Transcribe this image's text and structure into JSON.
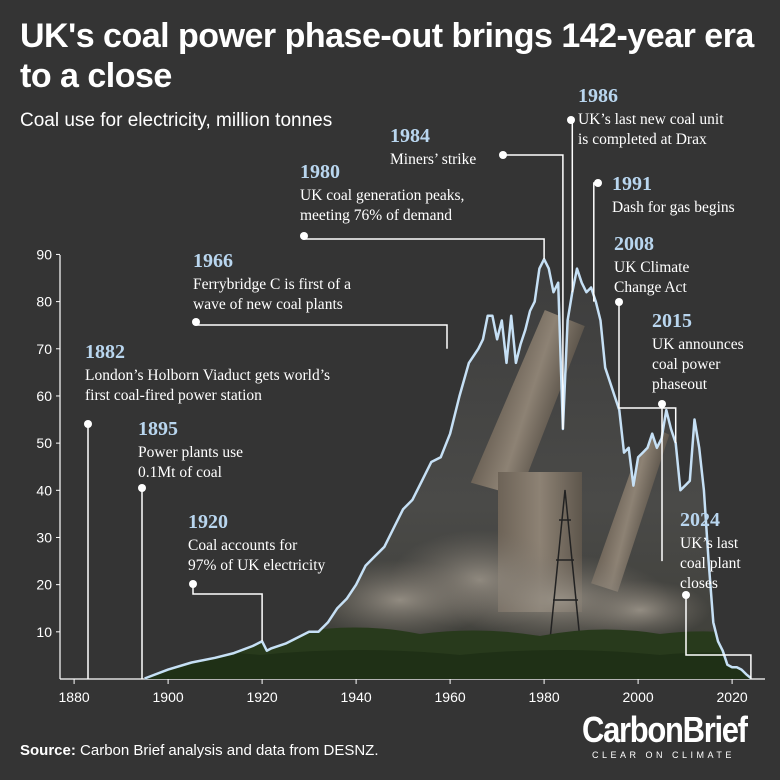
{
  "title": "UK's coal power phase-out brings 142-year era to a close",
  "subtitle": "Coal use for electricity, million tonnes",
  "source_label": "Source:",
  "source_text": " Carbon Brief analysis and data from DESNZ.",
  "logo": {
    "name": "CarbonBrief",
    "tagline": "CLEAR ON CLIMATE"
  },
  "colors": {
    "background": "#343434",
    "line": "#c6e0f5",
    "annotation_year": "#b9d6ef",
    "text": "#ffffff"
  },
  "chart_data": {
    "type": "line",
    "title": "UK's coal power phase-out brings 142-year era to a close",
    "ylabel": "Coal use for electricity, million tonnes",
    "xlim": [
      1877,
      2027
    ],
    "ylim": [
      0,
      92
    ],
    "x_ticks": [
      1880,
      1900,
      1920,
      1940,
      1960,
      1980,
      2000,
      2020
    ],
    "y_ticks": [
      10,
      20,
      30,
      40,
      50,
      60,
      70,
      80,
      90
    ],
    "series": [
      {
        "points": [
          [
            1895,
            0.1
          ],
          [
            1900,
            2
          ],
          [
            1905,
            3.5
          ],
          [
            1910,
            4.5
          ],
          [
            1914,
            5.5
          ],
          [
            1918,
            7
          ],
          [
            1920,
            8
          ],
          [
            1921,
            6
          ],
          [
            1922,
            6.5
          ],
          [
            1925,
            7.5
          ],
          [
            1928,
            9
          ],
          [
            1930,
            10
          ],
          [
            1932,
            10
          ],
          [
            1934,
            12
          ],
          [
            1936,
            15
          ],
          [
            1938,
            17
          ],
          [
            1940,
            20
          ],
          [
            1942,
            24
          ],
          [
            1944,
            26
          ],
          [
            1946,
            28
          ],
          [
            1948,
            32
          ],
          [
            1950,
            36
          ],
          [
            1952,
            38
          ],
          [
            1954,
            42
          ],
          [
            1956,
            46
          ],
          [
            1958,
            47
          ],
          [
            1960,
            52
          ],
          [
            1962,
            60
          ],
          [
            1964,
            67
          ],
          [
            1966,
            70
          ],
          [
            1967,
            72
          ],
          [
            1968,
            77
          ],
          [
            1969,
            77
          ],
          [
            1970,
            72
          ],
          [
            1971,
            76
          ],
          [
            1972,
            67
          ],
          [
            1973,
            77
          ],
          [
            1974,
            67
          ],
          [
            1975,
            71
          ],
          [
            1976,
            74
          ],
          [
            1977,
            78
          ],
          [
            1978,
            80
          ],
          [
            1979,
            87
          ],
          [
            1980,
            89
          ],
          [
            1981,
            87
          ],
          [
            1982,
            82
          ],
          [
            1983,
            84
          ],
          [
            1984,
            53
          ],
          [
            1985,
            76
          ],
          [
            1986,
            82
          ],
          [
            1987,
            87
          ],
          [
            1988,
            84
          ],
          [
            1989,
            82
          ],
          [
            1990,
            83
          ],
          [
            1991,
            80
          ],
          [
            1992,
            76
          ],
          [
            1993,
            66
          ],
          [
            1994,
            63
          ],
          [
            1995,
            60
          ],
          [
            1996,
            57
          ],
          [
            1997,
            48
          ],
          [
            1998,
            49
          ],
          [
            1999,
            41
          ],
          [
            2000,
            47
          ],
          [
            2001,
            48
          ],
          [
            2002,
            49
          ],
          [
            2003,
            52
          ],
          [
            2004,
            49
          ],
          [
            2005,
            51
          ],
          [
            2006,
            57
          ],
          [
            2007,
            53
          ],
          [
            2008,
            50
          ],
          [
            2009,
            40
          ],
          [
            2010,
            41
          ],
          [
            2011,
            42
          ],
          [
            2012,
            55
          ],
          [
            2013,
            49
          ],
          [
            2014,
            40
          ],
          [
            2015,
            25
          ],
          [
            2016,
            12
          ],
          [
            2017,
            8
          ],
          [
            2018,
            6
          ],
          [
            2019,
            3
          ],
          [
            2020,
            2.5
          ],
          [
            2021,
            2.5
          ],
          [
            2022,
            2
          ],
          [
            2023,
            1
          ],
          [
            2024,
            0.2
          ]
        ]
      }
    ],
    "annotations": [
      {
        "year": "1882",
        "lines": [
          "London’s Holborn Viaduct gets world’s",
          "first coal-fired power station"
        ]
      },
      {
        "year": "1895",
        "lines": [
          "Power plants use",
          "0.1Mt of coal"
        ]
      },
      {
        "year": "1920",
        "lines": [
          "Coal accounts for",
          "97% of UK electricity"
        ]
      },
      {
        "year": "1966",
        "lines": [
          "Ferrybridge C is first of a",
          "wave of new coal plants"
        ]
      },
      {
        "year": "1980",
        "lines": [
          "UK coal generation peaks,",
          "meeting 76% of demand"
        ]
      },
      {
        "year": "1984",
        "lines": [
          "Miners’ strike"
        ]
      },
      {
        "year": "1986",
        "lines": [
          "UK’s last new coal unit",
          "is completed at Drax"
        ]
      },
      {
        "year": "1991",
        "lines": [
          "Dash for gas begins"
        ]
      },
      {
        "year": "2008",
        "lines": [
          "UK Climate",
          "Change Act"
        ]
      },
      {
        "year": "2015",
        "lines": [
          "UK announces",
          "coal power",
          "phaseout"
        ]
      },
      {
        "year": "2024",
        "lines": [
          "UK’s last",
          "coal plant",
          "closes"
        ]
      }
    ]
  }
}
